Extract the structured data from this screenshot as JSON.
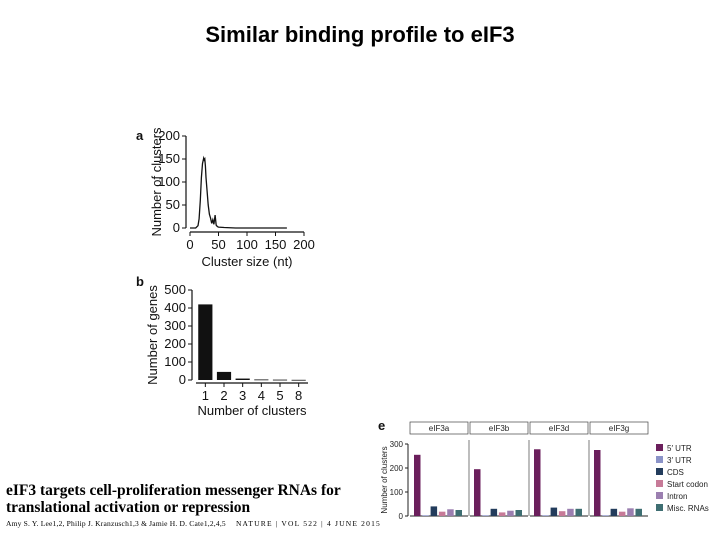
{
  "slide_title": "Similar binding profile to eIF3",
  "paper": {
    "title_line1": "eIF3 targets cell-proliferation messenger RNAs for",
    "title_line2": "translational activation or repression",
    "authors": "Amy S. Y. Lee1,2, Philip J. Kranzusch1,3 & Jamie H. D. Cate1,2,4,5",
    "journal": "NATURE | VOL 522 | 4 JUNE 2015"
  },
  "chart_data": [
    {
      "panel": "a",
      "type": "line",
      "xlabel": "Cluster size (nt)",
      "ylabel": "Number of clusters",
      "xlim": [
        0,
        200
      ],
      "ylim": [
        0,
        200
      ],
      "xticks": [
        0,
        50,
        100,
        150,
        200
      ],
      "yticks": [
        0,
        50,
        100,
        150,
        200
      ],
      "series": [
        {
          "x": [
            0,
            10,
            14,
            16,
            18,
            20,
            22,
            24,
            25,
            26,
            27,
            28,
            30,
            32,
            34,
            36,
            38,
            40,
            42,
            44,
            46,
            48,
            50,
            60,
            80,
            100,
            150,
            170
          ],
          "y": [
            0,
            0,
            5,
            20,
            60,
            110,
            140,
            152,
            148,
            150,
            135,
            110,
            80,
            50,
            30,
            22,
            10,
            18,
            8,
            28,
            6,
            3,
            2,
            1,
            0,
            0,
            0,
            0
          ]
        }
      ]
    },
    {
      "panel": "b",
      "type": "bar",
      "xlabel": "Number of clusters",
      "ylabel": "Number of genes",
      "categories": [
        "1",
        "2",
        "3",
        "4",
        "5",
        "8"
      ],
      "values": [
        420,
        45,
        8,
        3,
        2,
        1
      ],
      "ylim": [
        0,
        500
      ],
      "yticks": [
        0,
        100,
        200,
        300,
        400,
        500
      ]
    },
    {
      "panel": "e",
      "type": "bar",
      "ylabel": "Number of clusters",
      "ylim": [
        0,
        300
      ],
      "yticks": [
        0,
        100,
        200,
        300
      ],
      "groups": [
        "eIF3a",
        "eIF3b",
        "eIF3d",
        "eIF3g"
      ],
      "series": [
        {
          "name": "5′ UTR",
          "color": "#6b1f5c",
          "values": [
            255,
            195,
            278,
            275
          ]
        },
        {
          "name": "3′ UTR",
          "color": "#8b93c8",
          "values": [
            3,
            3,
            3,
            3
          ]
        },
        {
          "name": "CDS",
          "color": "#233c5c",
          "values": [
            40,
            30,
            35,
            30
          ]
        },
        {
          "name": "Start codon",
          "color": "#c77a98",
          "values": [
            18,
            15,
            20,
            18
          ]
        },
        {
          "name": "Intron",
          "color": "#9b7fb0",
          "values": [
            28,
            22,
            30,
            32
          ]
        },
        {
          "name": "Misc. RNAs",
          "color": "#3e6e72",
          "values": [
            25,
            25,
            30,
            30
          ]
        }
      ]
    }
  ]
}
